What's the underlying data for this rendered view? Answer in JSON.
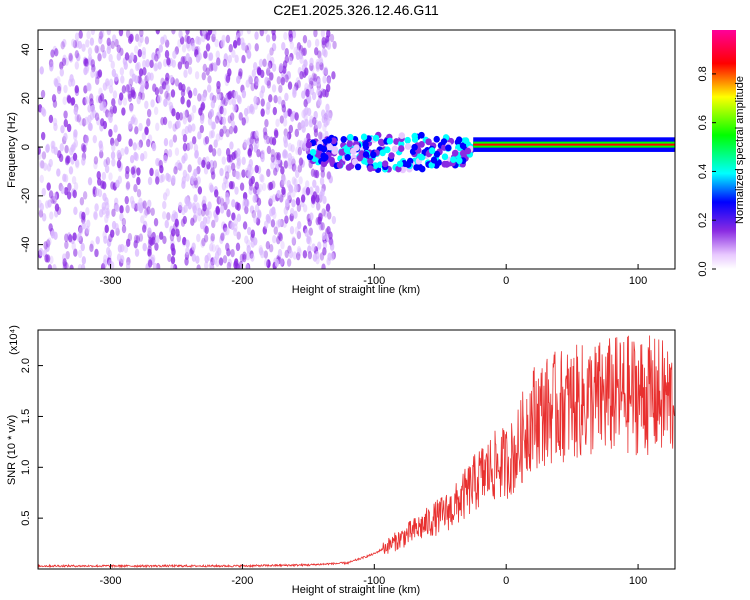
{
  "chart_data": [
    {
      "type": "heatmap",
      "title": "C2E1.2025.326.12.46.G11",
      "xlabel": "Height of straight line (km)",
      "ylabel": "Frequency (Hz)",
      "xlim": [
        -355,
        128
      ],
      "ylim": [
        -50,
        48
      ],
      "xticks": [
        -300,
        -200,
        -100,
        0,
        100
      ],
      "yticks": [
        -40,
        -20,
        0,
        20,
        40
      ],
      "grid": false,
      "colorbar": {
        "label": "Normalized spectral amplitude",
        "range": [
          0,
          0.98
        ],
        "ticks": [
          0.0,
          0.2,
          0.4,
          0.6,
          0.8
        ],
        "colors": [
          "#ffffff",
          "#e8c8ff",
          "#8a2be2",
          "#0000ff",
          "#00ffff",
          "#00ff00",
          "#ffff00",
          "#ff0000",
          "#ff0099"
        ]
      },
      "regions": [
        {
          "name": "noise",
          "x": [
            -355,
            -150
          ],
          "freq": [
            -50,
            48
          ],
          "amplitude": 0.1
        },
        {
          "name": "transition",
          "x": [
            -150,
            -25
          ],
          "freq": [
            -5,
            10
          ],
          "amplitude": 0.45
        },
        {
          "name": "tone",
          "x": [
            -25,
            128
          ],
          "freq": [
            0,
            2
          ],
          "amplitude": 0.85
        }
      ]
    },
    {
      "type": "line",
      "xlabel": "Height of straight line (km)",
      "ylabel": "SNR (10 * v/v)",
      "scale_label": "(x10⁴)",
      "xlim": [
        -355,
        128
      ],
      "ylim": [
        0,
        2.35
      ],
      "xticks": [
        -300,
        -200,
        -100,
        0,
        100
      ],
      "yticks": [
        0.5,
        1.0,
        1.5,
        2.0
      ],
      "grid": false,
      "series": [
        {
          "color": "#e8302f",
          "x": [
            -355,
            -300,
            -250,
            -200,
            -150,
            -120,
            -100,
            -80,
            -60,
            -40,
            -30,
            -20,
            -10,
            0,
            5,
            10,
            15,
            20,
            30,
            40,
            60,
            80,
            100,
            110,
            120,
            128
          ],
          "values": [
            0.03,
            0.03,
            0.03,
            0.03,
            0.04,
            0.06,
            0.15,
            0.3,
            0.45,
            0.6,
            0.75,
            0.9,
            1.0,
            1.05,
            1.1,
            1.2,
            1.4,
            1.5,
            1.55,
            1.6,
            1.65,
            1.7,
            1.72,
            1.7,
            1.68,
            1.65
          ]
        }
      ]
    }
  ]
}
